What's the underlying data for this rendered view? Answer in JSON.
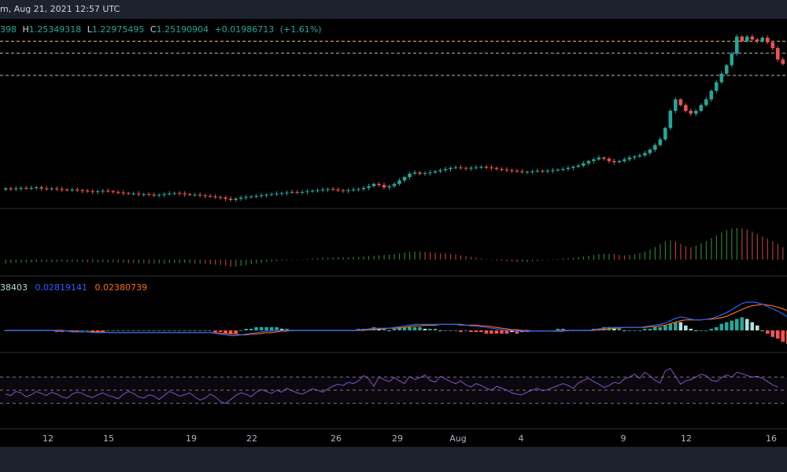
{
  "header": {
    "title_fragment": "m, Aug 21, 2021 12:57 UTC"
  },
  "ohlc": {
    "open_fragment": "398",
    "h_label": "H",
    "high": "1.25349318",
    "l_label": "L",
    "low": "1.22975495",
    "c_label": "C",
    "close": "1.25190904",
    "change": "+0.01986713",
    "change_pct": "(+1.61%)"
  },
  "macd_values": {
    "hist_fragment": "38403",
    "macd": "0.02819141",
    "signal": "0.02380739"
  },
  "colors": {
    "up": "#26a69a",
    "down": "#ef5350",
    "macd": "#2962ff",
    "signal": "#ff6d00",
    "rsi": "#7e57c2",
    "hist_up_strong": "#26a69a",
    "hist_up_weak": "#b2dfdb",
    "hist_down_strong": "#ff5252",
    "hist_down_weak": "#ffcdd2",
    "osc_up": "#1b5e20",
    "osc_down": "#7f1f1f"
  },
  "chart_data": [
    {
      "type": "candlestick",
      "x_ticks": [
        "12",
        "15",
        "19",
        "22",
        "26",
        "29",
        "Aug",
        "4",
        "9",
        "12",
        "16"
      ],
      "y_range": [
        0.98,
        1.29
      ],
      "close_series": [
        1.004,
        1.003,
        1.004,
        1.005,
        1.004,
        1.005,
        1.006,
        1.004,
        1.003,
        1.004,
        1.003,
        1.002,
        1.001,
        1.002,
        1.001,
        1.0,
        0.999,
        0.998,
        0.999,
        1.0,
        0.999,
        0.998,
        0.997,
        0.996,
        0.995,
        0.995,
        0.994,
        0.994,
        0.993,
        0.992,
        0.993,
        0.994,
        0.995,
        0.996,
        0.995,
        0.994,
        0.993,
        0.993,
        0.992,
        0.991,
        0.99,
        0.989,
        0.988,
        0.986,
        0.984,
        0.986,
        0.988,
        0.989,
        0.99,
        0.991,
        0.992,
        0.993,
        0.994,
        0.995,
        0.996,
        0.997,
        0.998,
        0.997,
        0.998,
        0.999,
        1.0,
        1.001,
        1.002,
        1.003,
        1.002,
        1.001,
        1.0,
        1.001,
        1.002,
        1.003,
        1.005,
        1.008,
        1.012,
        1.01,
        1.006,
        1.008,
        1.012,
        1.018,
        1.024,
        1.03,
        1.032,
        1.03,
        1.031,
        1.032,
        1.034,
        1.036,
        1.038,
        1.04,
        1.041,
        1.04,
        1.039,
        1.04,
        1.041,
        1.042,
        1.041,
        1.04,
        1.038,
        1.037,
        1.036,
        1.035,
        1.034,
        1.033,
        1.033,
        1.034,
        1.035,
        1.034,
        1.035,
        1.036,
        1.037,
        1.038,
        1.04,
        1.042,
        1.044,
        1.048,
        1.052,
        1.055,
        1.058,
        1.056,
        1.052,
        1.05,
        1.052,
        1.055,
        1.058,
        1.06,
        1.062,
        1.066,
        1.072,
        1.08,
        1.09,
        1.11,
        1.14,
        1.16,
        1.15,
        1.14,
        1.135,
        1.14,
        1.15,
        1.16,
        1.175,
        1.19,
        1.205,
        1.22,
        1.24,
        1.27,
        1.262,
        1.27,
        1.265,
        1.262,
        1.268,
        1.26,
        1.25,
        1.23,
        1.222
      ],
      "oscillator": [
        -0.01,
        -0.009,
        -0.008,
        -0.008,
        -0.008,
        -0.007,
        -0.006,
        -0.006,
        -0.006,
        -0.006,
        -0.006,
        -0.006,
        -0.006,
        -0.006,
        -0.006,
        -0.006,
        -0.007,
        -0.007,
        -0.007,
        -0.007,
        -0.007,
        -0.007,
        -0.008,
        -0.008,
        -0.009,
        -0.009,
        -0.009,
        -0.009,
        -0.01,
        -0.01,
        -0.01,
        -0.01,
        -0.009,
        -0.009,
        -0.009,
        -0.009,
        -0.009,
        -0.01,
        -0.01,
        -0.011,
        -0.012,
        -0.013,
        -0.014,
        -0.016,
        -0.018,
        -0.018,
        -0.016,
        -0.014,
        -0.012,
        -0.01,
        -0.008,
        -0.006,
        -0.005,
        -0.004,
        -0.003,
        -0.002,
        -0.001,
        0.0,
        0.001,
        0.002,
        0.003,
        0.004,
        0.005,
        0.005,
        0.006,
        0.006,
        0.006,
        0.006,
        0.007,
        0.007,
        0.008,
        0.009,
        0.01,
        0.011,
        0.012,
        0.013,
        0.014,
        0.016,
        0.018,
        0.02,
        0.021,
        0.021,
        0.02,
        0.019,
        0.018,
        0.017,
        0.016,
        0.015,
        0.013,
        0.011,
        0.009,
        0.007,
        0.005,
        0.003,
        0.001,
        -0.001,
        -0.002,
        -0.003,
        -0.004,
        -0.005,
        -0.006,
        -0.006,
        -0.006,
        -0.005,
        -0.004,
        -0.002,
        0.0,
        0.001,
        0.002,
        0.003,
        0.004,
        0.005,
        0.006,
        0.008,
        0.01,
        0.012,
        0.014,
        0.015,
        0.015,
        0.014,
        0.012,
        0.011,
        0.012,
        0.014,
        0.017,
        0.021,
        0.026,
        0.032,
        0.04,
        0.047,
        0.05,
        0.046,
        0.04,
        0.034,
        0.032,
        0.036,
        0.042,
        0.048,
        0.055,
        0.062,
        0.07,
        0.076,
        0.08,
        0.081,
        0.08,
        0.077,
        0.072,
        0.066,
        0.06,
        0.054,
        0.047,
        0.04,
        0.032
      ],
      "macd": [
        0.0,
        0.0,
        0.0,
        0.0,
        0.0,
        0.0,
        0.0,
        0.0,
        0.0,
        0.0,
        -0.001,
        -0.001,
        -0.001,
        -0.002,
        -0.002,
        -0.002,
        -0.002,
        -0.003,
        -0.003,
        -0.003,
        -0.003,
        -0.003,
        -0.003,
        -0.003,
        -0.003,
        -0.003,
        -0.003,
        -0.003,
        -0.003,
        -0.003,
        -0.003,
        -0.003,
        -0.003,
        -0.003,
        -0.003,
        -0.003,
        -0.003,
        -0.003,
        -0.003,
        -0.003,
        -0.003,
        -0.004,
        -0.005,
        -0.006,
        -0.007,
        -0.007,
        -0.006,
        -0.005,
        -0.004,
        -0.003,
        -0.002,
        -0.001,
        -0.001,
        0.0,
        0.0,
        0.0,
        0.0,
        0.0,
        0.0,
        0.0,
        0.0,
        0.0,
        0.0,
        0.0,
        0.0,
        0.0,
        0.0,
        0.0,
        0.0,
        0.001,
        0.001,
        0.002,
        0.003,
        0.003,
        0.003,
        0.003,
        0.004,
        0.005,
        0.006,
        0.007,
        0.008,
        0.008,
        0.008,
        0.008,
        0.008,
        0.008,
        0.008,
        0.008,
        0.008,
        0.007,
        0.007,
        0.006,
        0.006,
        0.005,
        0.004,
        0.003,
        0.002,
        0.001,
        0.0,
        0.0,
        -0.001,
        -0.001,
        -0.001,
        -0.001,
        -0.001,
        -0.001,
        -0.001,
        -0.001,
        0.0,
        0.0,
        0.0,
        0.0,
        0.0,
        0.0,
        0.0,
        0.001,
        0.002,
        0.003,
        0.004,
        0.004,
        0.004,
        0.004,
        0.004,
        0.004,
        0.004,
        0.005,
        0.006,
        0.007,
        0.008,
        0.01,
        0.013,
        0.016,
        0.018,
        0.017,
        0.015,
        0.014,
        0.014,
        0.015,
        0.016,
        0.018,
        0.021,
        0.024,
        0.028,
        0.032,
        0.036,
        0.038,
        0.038,
        0.037,
        0.035,
        0.032,
        0.029,
        0.026,
        0.022,
        0.018
      ],
      "signal": [
        0.0,
        0.0,
        0.0,
        0.0,
        0.0,
        0.0,
        0.0,
        0.0,
        0.0,
        0.0,
        0.0,
        0.0,
        -0.001,
        -0.001,
        -0.001,
        -0.002,
        -0.002,
        -0.002,
        -0.002,
        -0.002,
        -0.003,
        -0.003,
        -0.003,
        -0.003,
        -0.003,
        -0.003,
        -0.003,
        -0.003,
        -0.003,
        -0.003,
        -0.003,
        -0.003,
        -0.003,
        -0.003,
        -0.003,
        -0.003,
        -0.003,
        -0.003,
        -0.003,
        -0.003,
        -0.003,
        -0.003,
        -0.004,
        -0.004,
        -0.005,
        -0.005,
        -0.006,
        -0.006,
        -0.005,
        -0.005,
        -0.004,
        -0.003,
        -0.003,
        -0.002,
        -0.001,
        -0.001,
        0.0,
        0.0,
        0.0,
        0.0,
        0.0,
        0.0,
        0.0,
        0.0,
        0.0,
        0.0,
        0.0,
        0.0,
        0.0,
        0.0,
        0.0,
        0.001,
        0.001,
        0.002,
        0.002,
        0.003,
        0.003,
        0.003,
        0.004,
        0.005,
        0.006,
        0.006,
        0.007,
        0.007,
        0.007,
        0.008,
        0.008,
        0.008,
        0.008,
        0.008,
        0.007,
        0.007,
        0.007,
        0.006,
        0.006,
        0.005,
        0.004,
        0.003,
        0.002,
        0.001,
        0.001,
        0.0,
        0.0,
        -0.001,
        -0.001,
        -0.001,
        -0.001,
        -0.001,
        -0.001,
        -0.001,
        0.0,
        0.0,
        0.0,
        0.0,
        0.0,
        0.0,
        0.001,
        0.001,
        0.002,
        0.003,
        0.003,
        0.004,
        0.004,
        0.004,
        0.004,
        0.004,
        0.005,
        0.005,
        0.006,
        0.007,
        0.009,
        0.011,
        0.013,
        0.014,
        0.014,
        0.014,
        0.014,
        0.015,
        0.015,
        0.016,
        0.017,
        0.019,
        0.022,
        0.025,
        0.028,
        0.031,
        0.033,
        0.034,
        0.035,
        0.034,
        0.033,
        0.031,
        0.029,
        0.026
      ],
      "rsi": [
        44,
        42,
        48,
        46,
        40,
        43,
        48,
        45,
        42,
        47,
        44,
        40,
        38,
        44,
        47,
        45,
        41,
        39,
        43,
        46,
        42,
        40,
        37,
        44,
        48,
        45,
        40,
        38,
        43,
        41,
        36,
        42,
        48,
        45,
        41,
        43,
        46,
        40,
        35,
        38,
        44,
        40,
        33,
        30,
        36,
        42,
        46,
        44,
        40,
        47,
        51,
        48,
        45,
        50,
        47,
        53,
        49,
        46,
        44,
        48,
        52,
        50,
        47,
        52,
        56,
        59,
        57,
        62,
        60,
        64,
        72,
        67,
        56,
        70,
        66,
        63,
        69,
        64,
        60,
        71,
        66,
        69,
        73,
        65,
        62,
        71,
        67,
        63,
        60,
        64,
        58,
        55,
        60,
        57,
        53,
        50,
        56,
        53,
        50,
        46,
        44,
        43,
        47,
        50,
        53,
        49,
        51,
        54,
        57,
        60,
        57,
        53,
        61,
        65,
        68,
        63,
        59,
        54,
        57,
        62,
        60,
        67,
        70,
        74,
        68,
        77,
        72,
        65,
        61,
        79,
        83,
        71,
        59,
        64,
        66,
        70,
        74,
        72,
        65,
        63,
        69,
        73,
        70,
        77,
        75,
        72,
        70,
        71,
        68,
        63,
        58,
        55
      ],
      "rsi_levels": [
        70,
        50,
        30
      ]
    }
  ]
}
